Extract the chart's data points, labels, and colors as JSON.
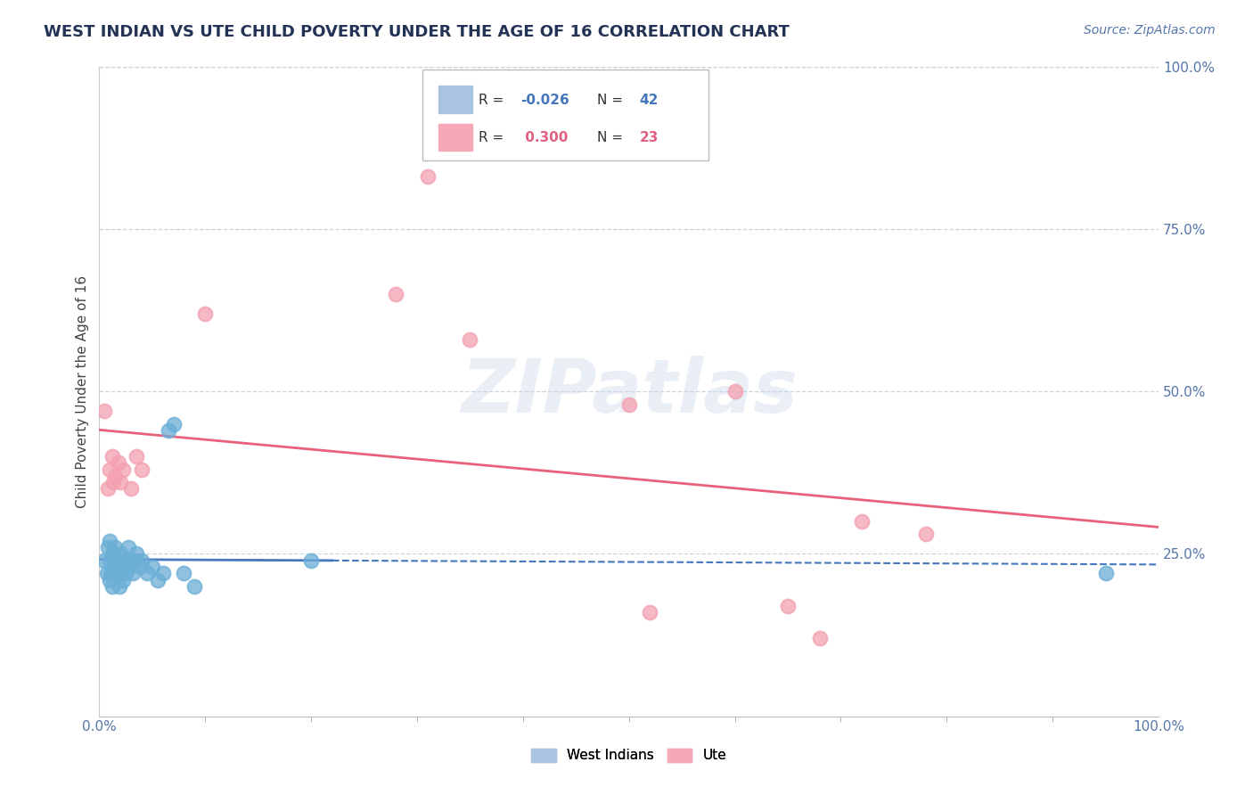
{
  "title": "WEST INDIAN VS UTE CHILD POVERTY UNDER THE AGE OF 16 CORRELATION CHART",
  "source": "Source: ZipAtlas.com",
  "ylabel": "Child Poverty Under the Age of 16",
  "xlim": [
    0.0,
    1.0
  ],
  "ylim": [
    0.0,
    1.0
  ],
  "ytick_positions": [
    0.25,
    0.5,
    0.75,
    1.0
  ],
  "ytick_labels": [
    "25.0%",
    "50.0%",
    "75.0%",
    "100.0%"
  ],
  "west_indian_x": [
    0.005,
    0.007,
    0.008,
    0.01,
    0.01,
    0.01,
    0.011,
    0.012,
    0.012,
    0.013,
    0.014,
    0.015,
    0.015,
    0.016,
    0.017,
    0.018,
    0.019,
    0.02,
    0.02,
    0.021,
    0.022,
    0.023,
    0.025,
    0.026,
    0.027,
    0.028,
    0.03,
    0.032,
    0.033,
    0.035,
    0.038,
    0.04,
    0.045,
    0.05,
    0.055,
    0.06,
    0.065,
    0.07,
    0.08,
    0.09,
    0.2,
    0.95
  ],
  "west_indian_y": [
    0.24,
    0.22,
    0.26,
    0.21,
    0.24,
    0.27,
    0.22,
    0.2,
    0.25,
    0.23,
    0.22,
    0.24,
    0.26,
    0.22,
    0.24,
    0.23,
    0.2,
    0.22,
    0.25,
    0.23,
    0.21,
    0.24,
    0.22,
    0.24,
    0.26,
    0.23,
    0.24,
    0.22,
    0.24,
    0.25,
    0.23,
    0.24,
    0.22,
    0.23,
    0.21,
    0.22,
    0.44,
    0.45,
    0.22,
    0.2,
    0.24,
    0.22
  ],
  "ute_x": [
    0.005,
    0.008,
    0.01,
    0.012,
    0.013,
    0.015,
    0.018,
    0.02,
    0.022,
    0.03,
    0.035,
    0.04,
    0.1,
    0.28,
    0.31,
    0.35,
    0.5,
    0.52,
    0.6,
    0.65,
    0.68,
    0.72,
    0.78
  ],
  "ute_y": [
    0.47,
    0.35,
    0.38,
    0.4,
    0.36,
    0.37,
    0.39,
    0.36,
    0.38,
    0.35,
    0.4,
    0.38,
    0.62,
    0.65,
    0.83,
    0.58,
    0.48,
    0.16,
    0.5,
    0.17,
    0.12,
    0.3,
    0.28
  ],
  "wi_dot_color": "#6baed6",
  "wi_dot_edge": "#6baed6",
  "ute_dot_color": "#f4a0b0",
  "ute_dot_edge": "#f4a0b0",
  "wi_line_color": "#4477bb",
  "ute_line_color": "#e8607a",
  "grid_color": "#c8d4e0",
  "background_color": "#ffffff",
  "title_color": "#223355",
  "source_color": "#5577aa",
  "tick_color": "#5577aa",
  "watermark": "ZIPatlas",
  "title_fontsize": 13,
  "source_fontsize": 10,
  "tick_fontsize": 11,
  "ylabel_fontsize": 11
}
